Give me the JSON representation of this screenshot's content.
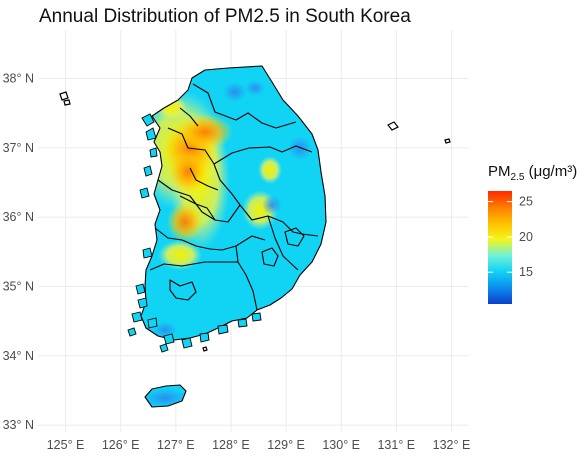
{
  "title": "Annual Distribution of PM2.5 in South Korea",
  "legend": {
    "title_main": "PM",
    "title_sub": "2.5",
    "title_unit": "(μg/m³)",
    "ticks": [
      {
        "label": "25",
        "value": 25
      },
      {
        "label": "20",
        "value": 20
      },
      {
        "label": "15",
        "value": 15
      }
    ],
    "range": [
      10.5,
      26.5
    ],
    "gradient_colors": [
      "#0a3fc8",
      "#0c8cf0",
      "#11d2f5",
      "#6ff2d8",
      "#f5f51e",
      "#ffc000",
      "#ff7c00",
      "#ff2a00"
    ]
  },
  "chart_data": {
    "type": "heatmap",
    "title": "Annual Distribution of PM2.5 in South Korea",
    "x_axis": {
      "range": [
        124.5,
        132.3
      ],
      "ticks": [
        {
          "value": 125,
          "label": "125° E"
        },
        {
          "value": 126,
          "label": "126° E"
        },
        {
          "value": 127,
          "label": "127° E"
        },
        {
          "value": 128,
          "label": "128° E"
        },
        {
          "value": 129,
          "label": "129° E"
        },
        {
          "value": 130,
          "label": "130° E"
        },
        {
          "value": 131,
          "label": "131° E"
        },
        {
          "value": 132,
          "label": "132° E"
        }
      ]
    },
    "y_axis": {
      "range": [
        32.9,
        38.7
      ],
      "ticks": [
        {
          "value": 33,
          "label": "33° N"
        },
        {
          "value": 34,
          "label": "34° N"
        },
        {
          "value": 35,
          "label": "35° N"
        },
        {
          "value": 36,
          "label": "36° N"
        },
        {
          "value": 37,
          "label": "37° N"
        },
        {
          "value": 38,
          "label": "38° N"
        }
      ]
    },
    "grid": true,
    "legend_position": "right"
  }
}
